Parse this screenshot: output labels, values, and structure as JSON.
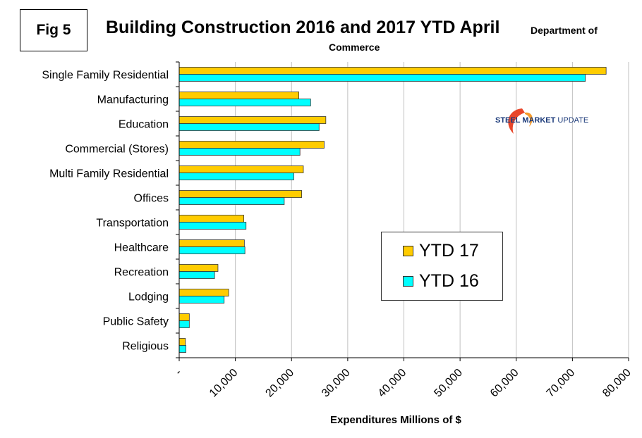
{
  "figure_label": "Fig 5",
  "title": "Building Construction 2016 and 2017 YTD April",
  "subtitle_line1": "Department of",
  "subtitle_line2": "Commerce",
  "logo": {
    "text_bold": "STEEL MARKET",
    "text_rest": " UPDATE",
    "icon": "swoosh-logo-icon"
  },
  "colors": {
    "ytd17": "#FFCC00",
    "ytd16": "#00FFFF",
    "grid": "#c0c0c0",
    "bar_outline": "#333333"
  },
  "chart_data": {
    "type": "bar",
    "orientation": "horizontal",
    "title": "Building Construction 2016 and 2017 YTD April",
    "subtitle": "Department of Commerce",
    "xlabel": "Expenditures Millions of $",
    "ylabel": "",
    "xlim": [
      0,
      80000
    ],
    "xticks": [
      0,
      10000,
      20000,
      30000,
      40000,
      50000,
      60000,
      70000,
      80000
    ],
    "xtick_labels": [
      "-",
      "10,000",
      "20,000",
      "30,000",
      "40,000",
      "50,000",
      "60,000",
      "70,000",
      "80,000"
    ],
    "grid": "vertical",
    "legend_position": "center-right",
    "categories": [
      "Single Family Residential",
      "Manufacturing",
      "Education",
      "Commercial (Stores)",
      "Multi Family Residential",
      "Offices",
      "Transportation",
      "Healthcare",
      "Recreation",
      "Lodging",
      "Public Safety",
      "Religious"
    ],
    "series": [
      {
        "name": "YTD 17",
        "color": "#FFCC00",
        "values": [
          76000,
          21300,
          26100,
          25800,
          22100,
          21800,
          11500,
          11600,
          6900,
          8800,
          1800,
          1100
        ]
      },
      {
        "name": "YTD 16",
        "color": "#00FFFF",
        "values": [
          72300,
          23400,
          24900,
          21500,
          20400,
          18700,
          11900,
          11700,
          6300,
          8000,
          1800,
          1200
        ]
      }
    ]
  }
}
